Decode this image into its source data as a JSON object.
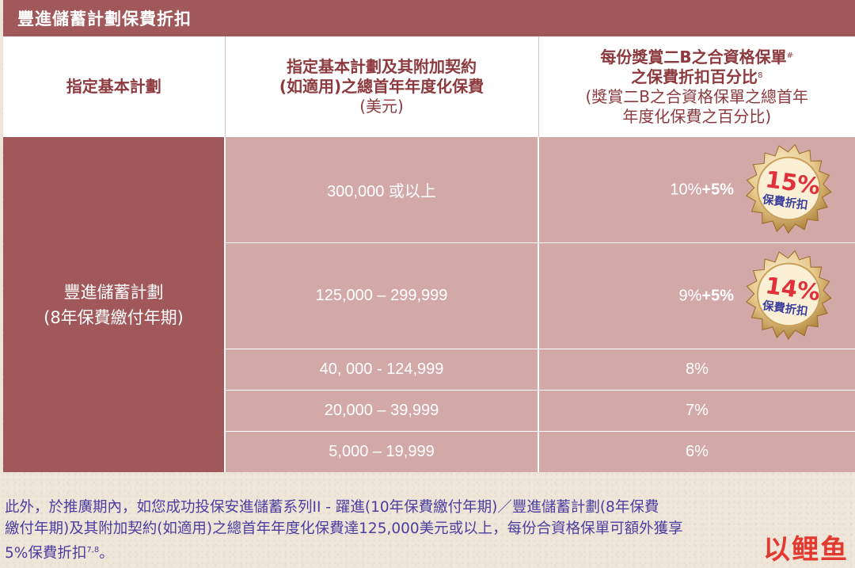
{
  "header": {
    "title": "豐進儲蓄計劃保費折扣"
  },
  "columns": {
    "col1": "指定基本計劃",
    "col2_line1": "指定基本計劃及其附加契約",
    "col2_line2": "(如適用)之總首年年度化保費",
    "col2_line3": "(美元)",
    "col3_line1": "每份獎賞二B之合資格保單",
    "col3_line1_sup": "#",
    "col3_line2": "之保費折扣百分比",
    "col3_line2_sup": "8",
    "col3_line3": "(獎賞二B之合資格保單之總首年",
    "col3_line4": "年度化保費之百分比)"
  },
  "plan": {
    "name": "豐進儲蓄計劃",
    "term": "(8年保費繳付年期)"
  },
  "rows": [
    {
      "premium": "300,000 或以上",
      "base": "10%",
      "extra": "+5%",
      "seal_pct": "15%",
      "seal_label": "保費折扣"
    },
    {
      "premium": "125,000 – 299,999",
      "base": "9%",
      "extra": "+5%",
      "seal_pct": "14%",
      "seal_label": "保費折扣"
    },
    {
      "premium": "40, 000 - 124,999",
      "base": "8%"
    },
    {
      "premium": "20,000 – 39,999",
      "base": "7%"
    },
    {
      "premium": "5,000 – 19,999",
      "base": "6%"
    }
  ],
  "footer": {
    "line1": "此外，於推廣期內，如您成功投保安進儲蓄系列II - 躍進(10年保費繳付年期)／豐進儲蓄計劃(8年保費",
    "line2": "繳付年期)及其附加契約(如適用)之總首年年度化保費達125,000美元或以上，每份合資格保單可額外獲享",
    "line3": "5%保費折扣",
    "line3_sup": "7,8",
    "line3_end": "。"
  },
  "watermark": {
    "text": "以鲤鱼"
  },
  "colors": {
    "header_bg": "#a1585b",
    "header_text": "#8c3a3e",
    "cell_bg": "#d3a9a7",
    "seal_gold": "#c9a15a",
    "seal_red": "#e0303a",
    "seal_blue": "#3a3f9c",
    "footer_text": "#4a3ea0",
    "logo_red": "#e33a30"
  }
}
